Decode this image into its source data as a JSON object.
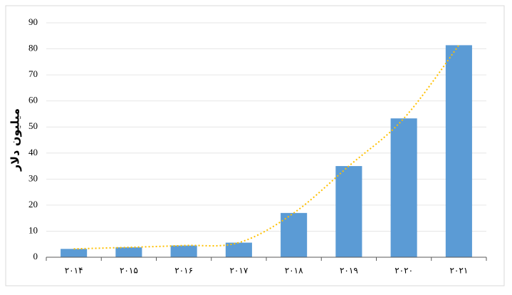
{
  "chart_data": {
    "type": "bar",
    "y_label": "میلیون دلار",
    "categories": [
      "۲۰۱۴",
      "۲۰۱۵",
      "۲۰۱۶",
      "۲۰۱۷",
      "۲۰۱۸",
      "۲۰۱۹",
      "۲۰۲۰",
      "۲۰۲۱"
    ],
    "values": [
      3.2,
      3.8,
      4.5,
      5.6,
      17,
      35,
      53.3,
      81.4
    ],
    "color": "#5b9bd5",
    "trendline": true,
    "trendline_color": "#ffc000",
    "ylim": [
      0,
      90
    ],
    "yticks": [
      0,
      10,
      20,
      30,
      40,
      50,
      60,
      70,
      80,
      90
    ],
    "grid": true
  }
}
